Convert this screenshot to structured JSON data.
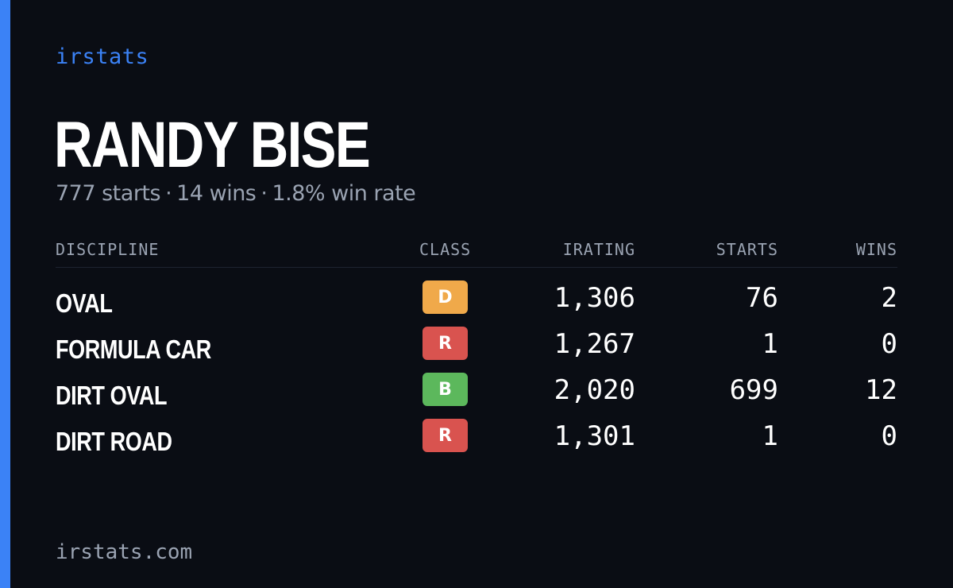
{
  "brand": "irstats",
  "player": {
    "name": "RANDY BISE",
    "starts_text": "777 starts",
    "wins_text": "14 wins",
    "win_rate_text": "1.8% win rate",
    "separator": "·"
  },
  "table": {
    "headers": {
      "discipline": "DISCIPLINE",
      "class": "CLASS",
      "irating": "IRATING",
      "starts": "STARTS",
      "wins": "WINS"
    },
    "rows": [
      {
        "discipline": "OVAL",
        "class": "D",
        "class_color": "#f0a94a",
        "irating": "1,306",
        "starts": "76",
        "wins": "2"
      },
      {
        "discipline": "FORMULA CAR",
        "class": "R",
        "class_color": "#d9534f",
        "irating": "1,267",
        "starts": "1",
        "wins": "0"
      },
      {
        "discipline": "DIRT OVAL",
        "class": "B",
        "class_color": "#5cb85c",
        "irating": "2,020",
        "starts": "699",
        "wins": "12"
      },
      {
        "discipline": "DIRT ROAD",
        "class": "R",
        "class_color": "#d9534f",
        "irating": "1,301",
        "starts": "1",
        "wins": "0"
      }
    ]
  },
  "footer": {
    "site": "irstats.com"
  },
  "colors": {
    "accent": "#3b82f6",
    "background": "#0a0d14",
    "muted": "#9aa3b2"
  }
}
